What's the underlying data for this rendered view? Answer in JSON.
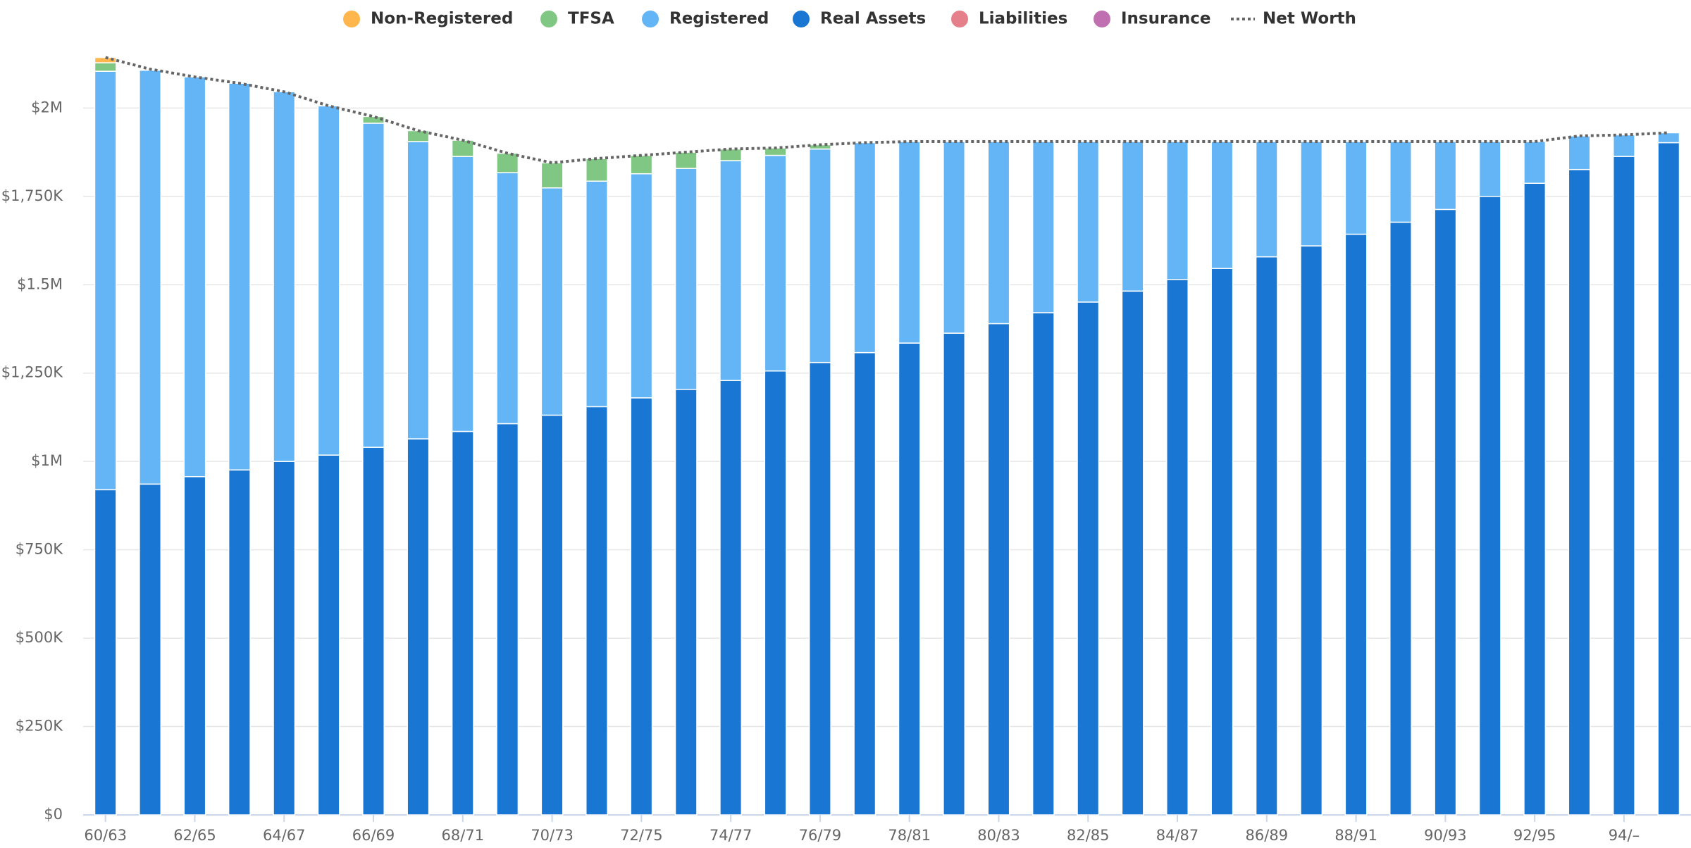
{
  "chart_data": {
    "type": "stacked_bar",
    "categories": [
      "60/63",
      null,
      "62/65",
      null,
      "64/67",
      null,
      "66/69",
      null,
      "68/71",
      null,
      "70/73",
      null,
      "72/75",
      null,
      "74/77",
      null,
      "76/79",
      null,
      "78/81",
      null,
      "80/83",
      null,
      "82/85",
      null,
      "84/87",
      null,
      "86/89",
      null,
      "88/91",
      null,
      "90/93",
      null,
      "92/95",
      null,
      "94/–",
      null
    ],
    "series": [
      {
        "name": "Non-Registered",
        "color": "#ffb74d",
        "values": [
          15000,
          0,
          0,
          0,
          0,
          0,
          0,
          0,
          0,
          0,
          0,
          0,
          0,
          0,
          0,
          0,
          0,
          0,
          0,
          0,
          0,
          0,
          0,
          0,
          0,
          0,
          0,
          0,
          0,
          0,
          0,
          0,
          0,
          0,
          0,
          0
        ]
      },
      {
        "name": "TFSA",
        "color": "#81c784",
        "values": [
          24000,
          3000,
          0,
          0,
          0,
          0,
          19000,
          31000,
          46000,
          55000,
          71000,
          64000,
          52000,
          46000,
          33000,
          21000,
          12000,
          0,
          0,
          0,
          0,
          0,
          0,
          0,
          0,
          0,
          0,
          0,
          0,
          0,
          0,
          0,
          0,
          0,
          0,
          0
        ]
      },
      {
        "name": "Registered",
        "color": "#64b5f6",
        "values": [
          1184000,
          1171000,
          1131000,
          1094000,
          1046000,
          988000,
          917000,
          841000,
          778000,
          710000,
          643000,
          638000,
          634000,
          625000,
          622000,
          610000,
          604000,
          594000,
          570000,
          542000,
          515000,
          484000,
          454000,
          423000,
          390000,
          359000,
          326000,
          295000,
          262000,
          228000,
          192000,
          155000,
          118000,
          95000,
          61000,
          28000
        ]
      },
      {
        "name": "Real Assets",
        "color": "#1976d2",
        "values": [
          920000,
          936000,
          957000,
          976000,
          1000000,
          1018000,
          1040000,
          1064000,
          1085000,
          1107000,
          1131000,
          1155000,
          1180000,
          1204000,
          1229000,
          1256000,
          1280000,
          1308000,
          1335000,
          1363000,
          1390000,
          1421000,
          1451000,
          1482000,
          1515000,
          1546000,
          1579000,
          1610000,
          1643000,
          1677000,
          1713000,
          1750000,
          1787000,
          1826000,
          1863000,
          1902000
        ]
      },
      {
        "name": "Liabilities",
        "color": "#e57f8a",
        "values": [
          0,
          0,
          0,
          0,
          0,
          0,
          0,
          0,
          0,
          0,
          0,
          0,
          0,
          0,
          0,
          0,
          0,
          0,
          0,
          0,
          0,
          0,
          0,
          0,
          0,
          0,
          0,
          0,
          0,
          0,
          0,
          0,
          0,
          0,
          0,
          0
        ]
      },
      {
        "name": "Insurance",
        "color": "#c070b0",
        "values": [
          0,
          0,
          0,
          0,
          0,
          0,
          0,
          0,
          0,
          0,
          0,
          0,
          0,
          0,
          0,
          0,
          0,
          0,
          0,
          0,
          0,
          0,
          0,
          0,
          0,
          0,
          0,
          0,
          0,
          0,
          0,
          0,
          0,
          0,
          0,
          0
        ]
      },
      {
        "name": "Net Worth",
        "type": "line",
        "color": "#666666",
        "values": [
          2143000,
          2110000,
          2088000,
          2070000,
          2046000,
          2006000,
          1976000,
          1936000,
          1909000,
          1872000,
          1845000,
          1857000,
          1866000,
          1875000,
          1884000,
          1887000,
          1896000,
          1902000,
          1905000,
          1905000,
          1905000,
          1905000,
          1905000,
          1905000,
          1905000,
          1905000,
          1905000,
          1905000,
          1905000,
          1905000,
          1905000,
          1905000,
          1905000,
          1921000,
          1924000,
          1930000
        ]
      }
    ],
    "ylim": [
      0,
      2200000
    ],
    "yticks": [
      {
        "value": 0,
        "label": "$0"
      },
      {
        "value": 250000,
        "label": "$250K"
      },
      {
        "value": 500000,
        "label": "$500K"
      },
      {
        "value": 750000,
        "label": "$750K"
      },
      {
        "value": 1000000,
        "label": "$1M"
      },
      {
        "value": 1250000,
        "label": "$1,250K"
      },
      {
        "value": 1500000,
        "label": "$1.5M"
      },
      {
        "value": 1750000,
        "label": "$1,750K"
      },
      {
        "value": 2000000,
        "label": "$2M"
      }
    ],
    "grid": true,
    "legend": "top"
  }
}
